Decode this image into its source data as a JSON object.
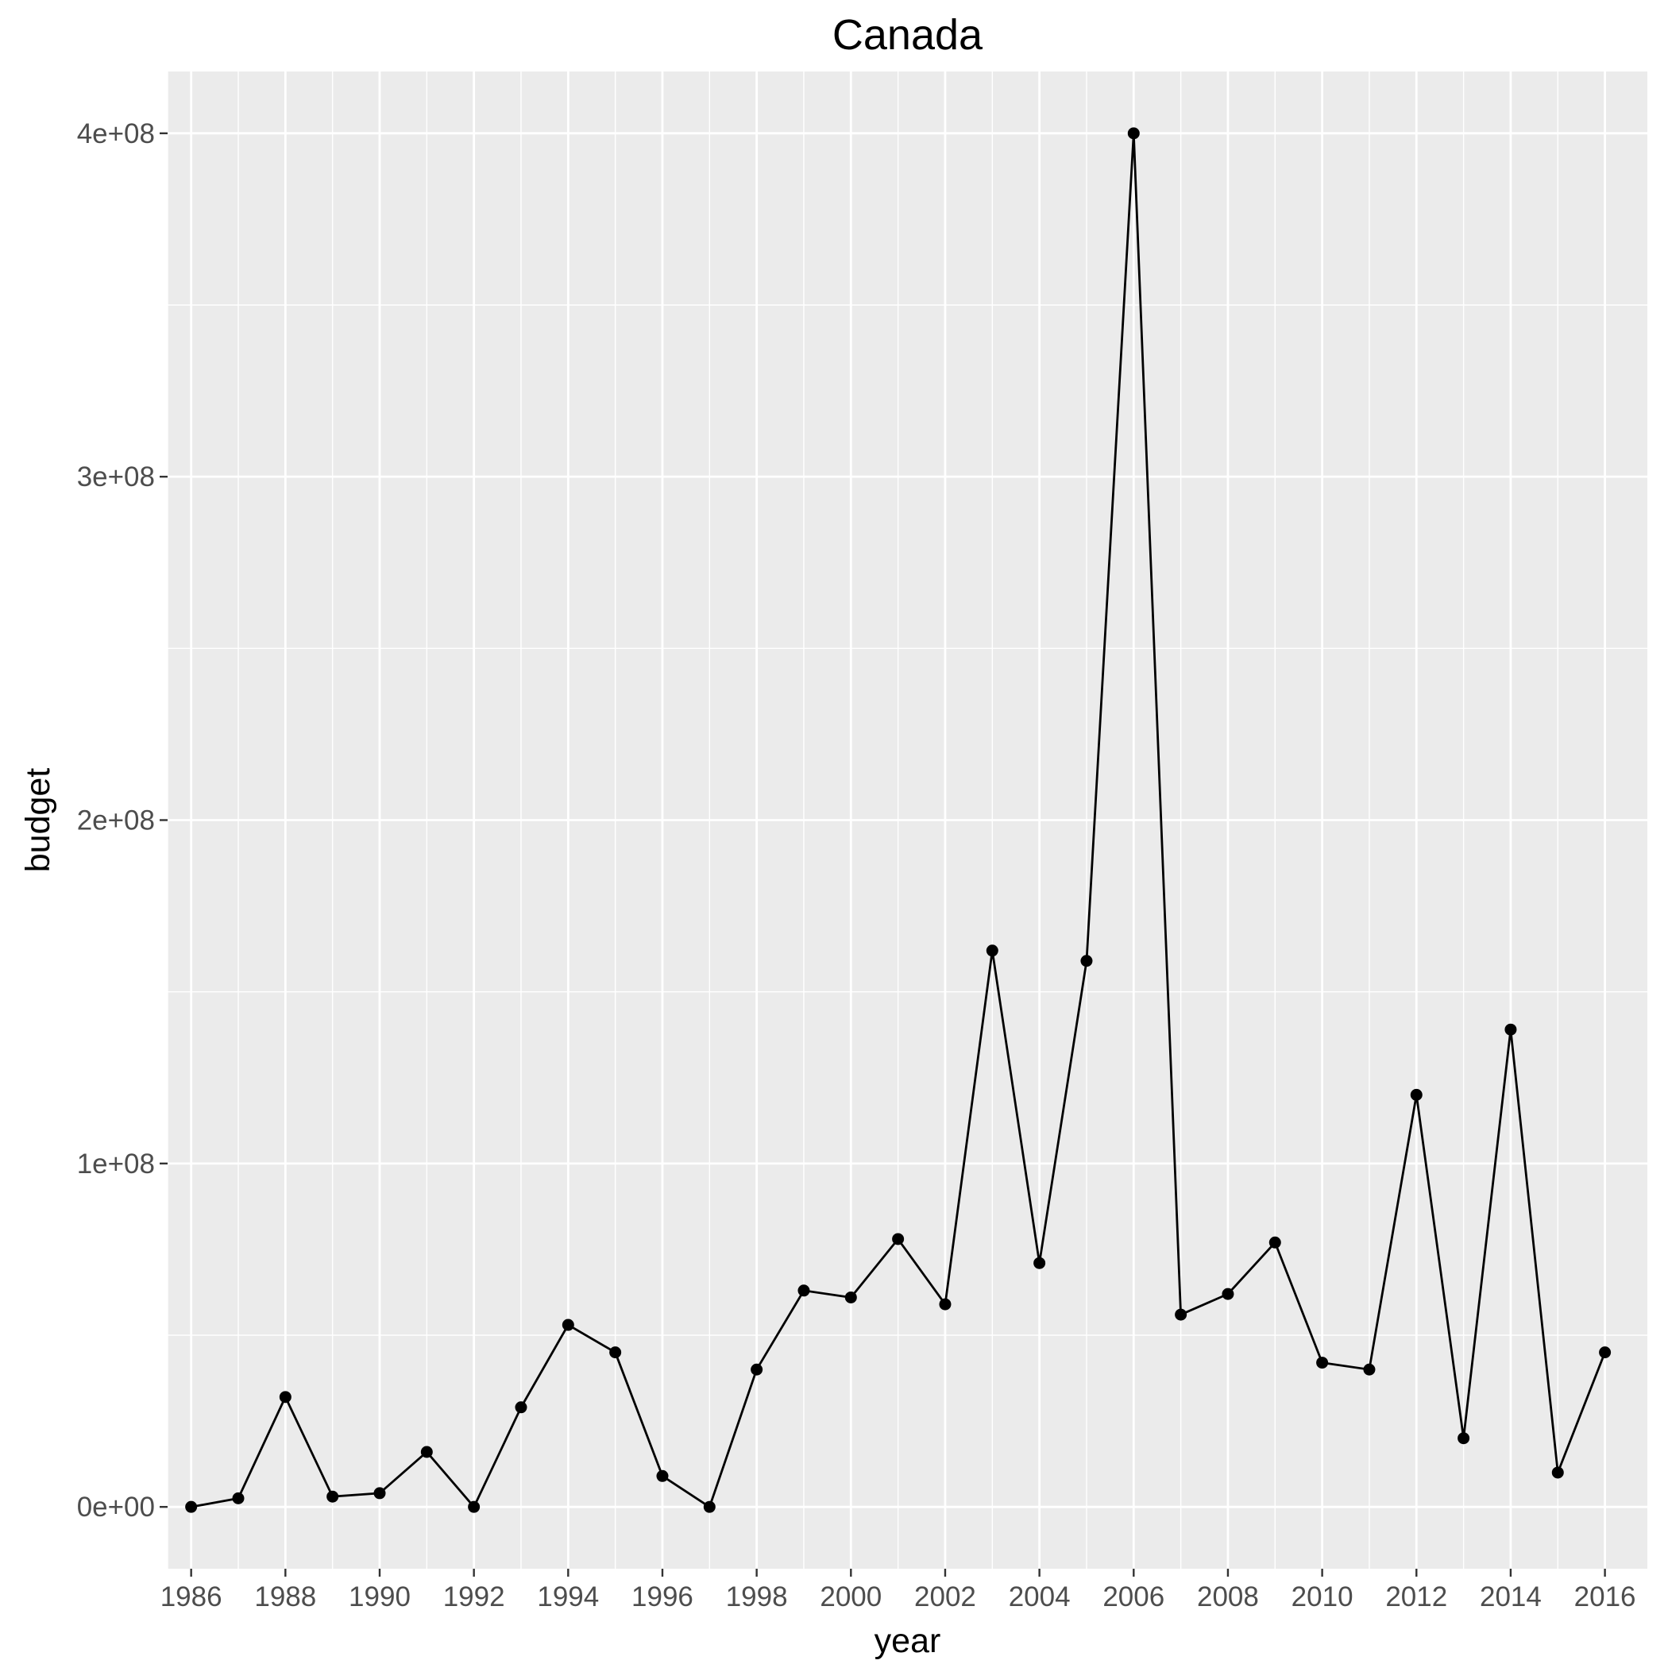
{
  "chart_data": {
    "type": "line",
    "title": "Canada",
    "xlabel": "year",
    "ylabel": "budget",
    "xlim": [
      1985.5,
      2016.9
    ],
    "ylim": [
      -18000000,
      418000000
    ],
    "x_breaks": [
      1986,
      1988,
      1990,
      1992,
      1994,
      1996,
      1998,
      2000,
      2002,
      2004,
      2006,
      2008,
      2010,
      2012,
      2014,
      2016
    ],
    "y_breaks": [
      0,
      100000000,
      200000000,
      300000000,
      400000000
    ],
    "y_tick_labels": [
      "0e+00",
      "1e+08",
      "2e+08",
      "3e+08",
      "4e+08"
    ],
    "grid": true,
    "colors": {
      "panel": "#ebebeb",
      "grid": "#ffffff",
      "series": "#000000"
    },
    "series": [
      {
        "x": [
          1986,
          1987,
          1988,
          1989,
          1990,
          1991,
          1992,
          1993,
          1994,
          1995,
          1996,
          1997,
          1998,
          1999,
          2000,
          2001,
          2002,
          2003,
          2004,
          2005,
          2006,
          2007,
          2008,
          2009,
          2010,
          2011,
          2012,
          2013,
          2014,
          2015,
          2016
        ],
        "values": [
          0,
          2500000,
          32000000,
          3000000,
          4000000,
          16000000,
          0,
          29000000,
          53000000,
          45000000,
          9000000,
          0,
          40000000,
          63000000,
          61000000,
          78000000,
          59000000,
          162000000,
          71000000,
          159000000,
          400000000,
          56000000,
          62000000,
          77000000,
          42000000,
          40000000,
          120000000,
          20000000,
          139000000,
          10000000,
          45000000
        ]
      }
    ]
  }
}
